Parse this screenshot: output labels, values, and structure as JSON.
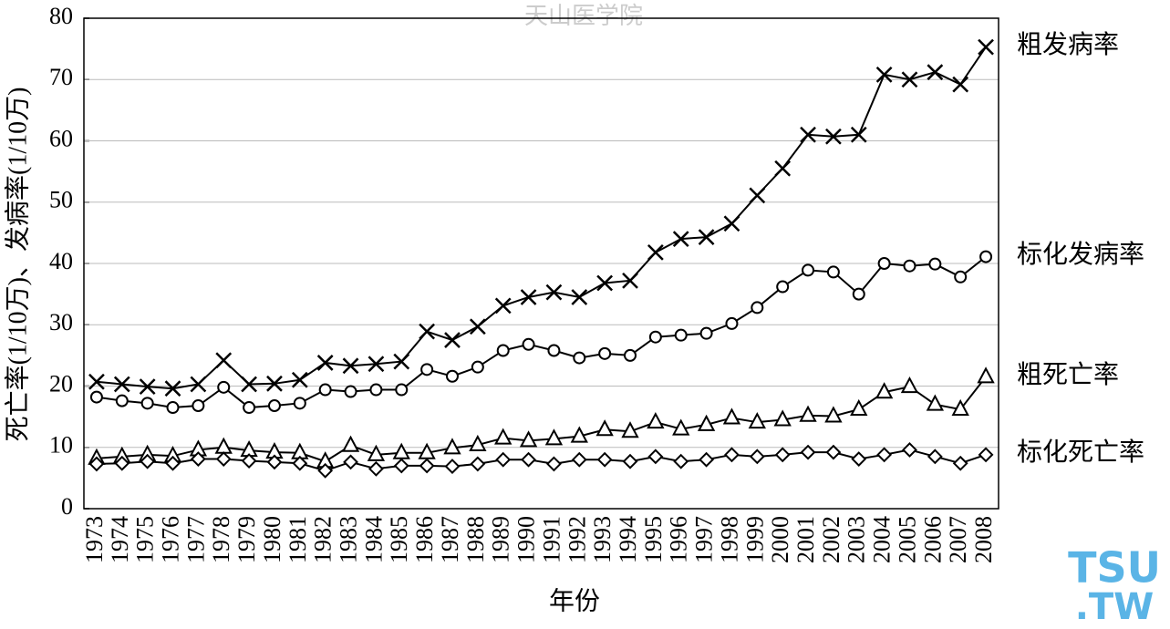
{
  "chart_data": {
    "type": "line",
    "watermark": "天山医学院",
    "logo": [
      "TSU",
      ".TW"
    ],
    "x_label": "年份",
    "y_label": "死亡率(1/10万)、发病率(1/10万)",
    "categories": [
      "1973",
      "1974",
      "1975",
      "1976",
      "1977",
      "1978",
      "1979",
      "1980",
      "1981",
      "1982",
      "1983",
      "1984",
      "1985",
      "1986",
      "1987",
      "1988",
      "1989",
      "1990",
      "1991",
      "1992",
      "1993",
      "1994",
      "1995",
      "1996",
      "1997",
      "1998",
      "1999",
      "2000",
      "2001",
      "2002",
      "2003",
      "2004",
      "2005",
      "2006",
      "2007",
      "2008"
    ],
    "series": [
      {
        "name": "粗发病率",
        "color": "#000000",
        "marker": "cross",
        "values": [
          20.7,
          20.3,
          19.9,
          19.6,
          20.3,
          24.2,
          20.3,
          20.4,
          21.0,
          23.8,
          23.3,
          23.6,
          24.0,
          28.9,
          27.5,
          29.7,
          33.1,
          34.5,
          35.3,
          34.5,
          36.8,
          37.2,
          41.8,
          44.0,
          44.3,
          46.5,
          51.1,
          55.5,
          61.0,
          60.7,
          61.0,
          70.8,
          70.0,
          71.2,
          69.2,
          75.3
        ]
      },
      {
        "name": "标化发病率",
        "color": "#000000",
        "marker": "circle",
        "values": [
          18.2,
          17.6,
          17.2,
          16.5,
          16.8,
          19.8,
          16.5,
          16.8,
          17.2,
          19.4,
          19.1,
          19.4,
          19.4,
          22.7,
          21.6,
          23.1,
          25.8,
          26.8,
          25.8,
          24.6,
          25.3,
          25.0,
          28.0,
          28.3,
          28.6,
          30.2,
          32.8,
          36.2,
          38.9,
          38.6,
          35.0,
          40.0,
          39.6,
          39.9,
          37.8,
          41.1
        ]
      },
      {
        "name": "粗死亡率",
        "color": "#000000",
        "marker": "triangle",
        "values": [
          8.2,
          8.5,
          8.8,
          8.6,
          9.6,
          10.0,
          9.5,
          9.2,
          9.1,
          7.7,
          10.3,
          8.8,
          9.1,
          9.1,
          9.9,
          10.4,
          11.5,
          11.1,
          11.4,
          11.8,
          12.9,
          12.6,
          14.1,
          13.0,
          13.7,
          14.8,
          14.1,
          14.5,
          15.2,
          15.1,
          16.2,
          19.0,
          19.9,
          17.0,
          16.2,
          21.5
        ]
      },
      {
        "name": "标化死亡率",
        "color": "#000000",
        "marker": "diamond",
        "values": [
          7.3,
          7.4,
          7.7,
          7.4,
          8.1,
          8.1,
          7.8,
          7.6,
          7.4,
          6.2,
          7.6,
          6.5,
          7.0,
          7.0,
          6.9,
          7.3,
          8.0,
          8.0,
          7.3,
          8.0,
          8.0,
          7.7,
          8.5,
          7.7,
          8.0,
          8.8,
          8.5,
          8.8,
          9.2,
          9.2,
          8.1,
          8.8,
          9.6,
          8.5,
          7.4,
          8.8
        ]
      }
    ],
    "ylim": [
      0,
      80
    ],
    "yticks": [
      0,
      10,
      20,
      30,
      40,
      50,
      60,
      70,
      80
    ],
    "grid": true
  }
}
